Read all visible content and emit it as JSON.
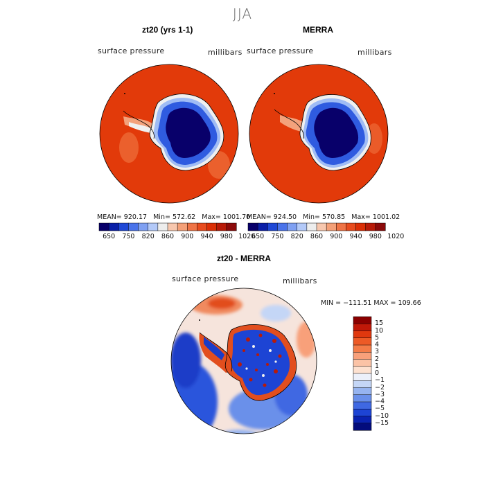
{
  "season": "JJA",
  "panels": [
    {
      "title": "zt20 (yrs 1-1)",
      "left_label": "surface pressure",
      "right_label": "millibars",
      "stats": {
        "mean_label": "MEAN=",
        "mean": "920.17",
        "min_label": "Min=",
        "min": "572.62",
        "max_label": "Max=",
        "max": "1001.70"
      }
    },
    {
      "title": "MERRA",
      "left_label": "surface pressure",
      "right_label": "millibars",
      "stats": {
        "mean_label": "MEAN=",
        "mean": "924.50",
        "min_label": "Min=",
        "min": "570.85",
        "max_label": "Max=",
        "max": "1001.02"
      }
    }
  ],
  "top_colorbar": {
    "ticks": [
      "650",
      "750",
      "820",
      "860",
      "900",
      "940",
      "980",
      "1020"
    ],
    "colors": [
      "#08006a",
      "#0a1fa8",
      "#1f48d6",
      "#4a73ea",
      "#7fa0f2",
      "#b3c9f8",
      "#ededed",
      "#f7c7ae",
      "#f4a078",
      "#ef7446",
      "#e84c1e",
      "#db2f06",
      "#b81a08",
      "#8b0a0a"
    ]
  },
  "diff": {
    "title": "zt20 - MERRA",
    "left_label": "surface pressure",
    "right_label": "millibars",
    "minmax": "MIN = −111.51  MAX = 109.66",
    "colorbar": {
      "ticks": [
        "15",
        "10",
        "5",
        "4",
        "3",
        "2",
        "1",
        "0",
        "−1",
        "−2",
        "−3",
        "−4",
        "−5",
        "−10",
        "−15"
      ],
      "colors": [
        "#8b0000",
        "#c01808",
        "#e0380e",
        "#ed5a26",
        "#f47c48",
        "#f8a07a",
        "#fbc3a6",
        "#fde1d0",
        "#ecf0fa",
        "#c4d6f6",
        "#96b4f0",
        "#6a90ea",
        "#3f68e2",
        "#1d44d4",
        "#0a22b0",
        "#030c7c"
      ]
    }
  }
}
